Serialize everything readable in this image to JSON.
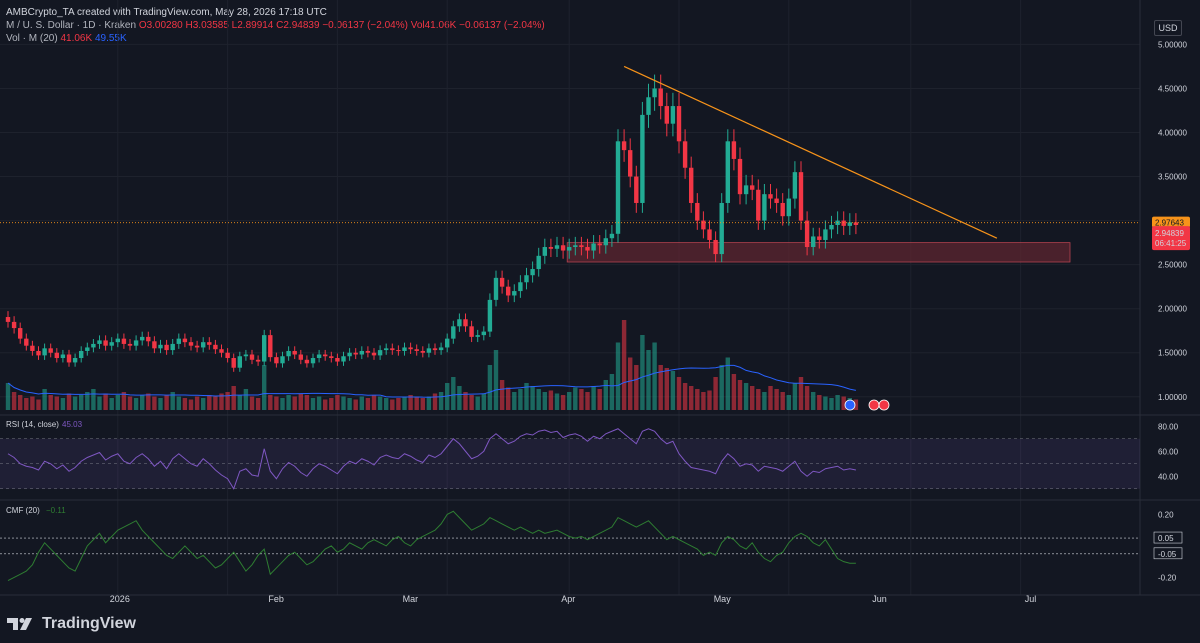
{
  "header": {
    "title": "AMBCrypto_TA created with TradingView.com, May 28, 2026 17:18 UTC",
    "symbol": "M / U. S. Dollar · 1D · Kraken",
    "ohlc": "O3.00280 H3.03585 L2.89914 C2.94839",
    "change": "−0.06137 (−2.04%)",
    "vol_inline": "Vol41.06K",
    "vol_change": "−0.06137 (−2.04%)",
    "vol_label": "Vol · M (20)",
    "vol_value": "41.06K",
    "vol_ma": "49.55K",
    "rsi_label": "RSI (14, close)",
    "rsi_value": "45.03",
    "cmf_label": "CMF (20)",
    "cmf_value": "−0.11"
  },
  "currency_label": "USD",
  "brand": "TradingView",
  "colors": {
    "bg": "#131722",
    "up": "#22ab94",
    "down": "#f23645",
    "trendline": "#f7931a",
    "zone": "#5d2530",
    "rsi": "#7e57c2",
    "cmf": "#2e7d32",
    "vol_ma": "#2962ff"
  },
  "chart_data": {
    "type": "candlestick",
    "price_axis": [
      "5.00000",
      "4.50000",
      "4.00000",
      "3.50000",
      "3.00000",
      "2.50000",
      "2.00000",
      "1.50000",
      "1.00000"
    ],
    "price_tags": {
      "high_line": "2.97643",
      "last": "2.94839",
      "countdown": "06:41:25"
    },
    "rsi_axis": [
      "80.00",
      "60.00",
      "40.00"
    ],
    "cmf_axis": [
      "0.20",
      "0.05",
      "-0.05",
      "-0.20"
    ],
    "date_labels": [
      "2026",
      "Feb",
      "Mar",
      "Apr",
      "May",
      "Jun",
      "Jul"
    ],
    "price": [
      1.85,
      1.78,
      1.66,
      1.58,
      1.52,
      1.47,
      1.55,
      1.5,
      1.44,
      1.48,
      1.39,
      1.44,
      1.52,
      1.56,
      1.6,
      1.64,
      1.58,
      1.62,
      1.66,
      1.6,
      1.58,
      1.64,
      1.68,
      1.63,
      1.55,
      1.59,
      1.53,
      1.6,
      1.66,
      1.62,
      1.58,
      1.56,
      1.62,
      1.59,
      1.54,
      1.5,
      1.44,
      1.33,
      1.46,
      1.48,
      1.42,
      1.4,
      1.7,
      1.45,
      1.38,
      1.46,
      1.52,
      1.48,
      1.42,
      1.38,
      1.44,
      1.48,
      1.46,
      1.44,
      1.4,
      1.46,
      1.5,
      1.48,
      1.52,
      1.5,
      1.47,
      1.53,
      1.55,
      1.53,
      1.52,
      1.56,
      1.54,
      1.52,
      1.5,
      1.55,
      1.53,
      1.56,
      1.66,
      1.8,
      1.88,
      1.8,
      1.68,
      1.7,
      1.74,
      2.1,
      2.35,
      2.25,
      2.15,
      2.2,
      2.3,
      2.38,
      2.45,
      2.6,
      2.7,
      2.68,
      2.72,
      2.66,
      2.7,
      2.72,
      2.7,
      2.66,
      2.74,
      2.72,
      2.8,
      2.85,
      3.9,
      3.8,
      3.5,
      3.2,
      4.2,
      4.4,
      4.5,
      4.3,
      4.1,
      4.3,
      3.9,
      3.6,
      3.2,
      3.0,
      2.9,
      2.78,
      2.62,
      3.2,
      3.9,
      3.7,
      3.3,
      3.4,
      3.35,
      3.0,
      3.3,
      3.25,
      3.2,
      3.05,
      3.25,
      3.55,
      3.0,
      2.7,
      2.82,
      2.78,
      2.9,
      2.95,
      3.0,
      2.94,
      2.98,
      2.95
    ],
    "rsi": [
      58,
      55,
      50,
      48,
      47,
      45,
      52,
      50,
      46,
      49,
      44,
      47,
      52,
      55,
      57,
      59,
      53,
      56,
      58,
      52,
      50,
      55,
      58,
      54,
      48,
      52,
      46,
      54,
      58,
      54,
      50,
      48,
      54,
      50,
      45,
      41,
      38,
      30,
      44,
      46,
      41,
      40,
      62,
      44,
      38,
      46,
      51,
      48,
      43,
      40,
      46,
      50,
      48,
      45,
      42,
      48,
      52,
      50,
      54,
      52,
      49,
      55,
      57,
      55,
      54,
      58,
      56,
      53,
      51,
      57,
      55,
      58,
      64,
      70,
      66,
      60,
      54,
      56,
      60,
      70,
      74,
      70,
      66,
      68,
      72,
      74,
      73,
      76,
      77,
      75,
      76,
      71,
      73,
      74,
      72,
      68,
      72,
      70,
      74,
      76,
      78,
      74,
      70,
      66,
      76,
      78,
      76,
      70,
      66,
      68,
      58,
      52,
      47,
      46,
      45,
      44,
      42,
      52,
      58,
      54,
      48,
      50,
      49,
      44,
      48,
      47,
      46,
      44,
      48,
      52,
      44,
      40,
      44,
      43,
      46,
      47,
      48,
      45,
      46,
      45
    ],
    "cmf": [
      -0.22,
      -0.2,
      -0.18,
      -0.16,
      -0.12,
      -0.04,
      0.02,
      -0.02,
      -0.06,
      -0.1,
      -0.14,
      -0.16,
      -0.08,
      0.0,
      0.04,
      0.08,
      0.02,
      0.06,
      0.1,
      0.12,
      0.14,
      0.16,
      0.1,
      0.06,
      0.02,
      -0.02,
      -0.06,
      -0.08,
      -0.04,
      0.0,
      -0.04,
      -0.08,
      -0.06,
      -0.1,
      -0.14,
      -0.12,
      -0.08,
      -0.04,
      -0.1,
      -0.16,
      -0.12,
      -0.06,
      -0.02,
      -0.18,
      -0.14,
      -0.1,
      -0.06,
      -0.04,
      -0.08,
      -0.12,
      -0.1,
      -0.06,
      -0.02,
      0.0,
      -0.04,
      -0.02,
      0.02,
      0.0,
      -0.02,
      0.02,
      0.04,
      0.02,
      0.0,
      0.04,
      0.06,
      0.02,
      0.0,
      0.04,
      0.06,
      0.08,
      0.1,
      0.14,
      0.2,
      0.22,
      0.18,
      0.14,
      0.1,
      0.12,
      0.14,
      0.18,
      0.16,
      0.14,
      0.12,
      0.1,
      0.12,
      0.1,
      0.08,
      0.1,
      0.08,
      0.09,
      0.1,
      0.08,
      0.06,
      0.05,
      0.06,
      0.04,
      0.06,
      0.08,
      0.1,
      0.12,
      0.18,
      0.16,
      0.14,
      0.12,
      0.14,
      0.16,
      0.12,
      0.08,
      0.04,
      0.06,
      0.04,
      0.02,
      0.0,
      -0.02,
      -0.06,
      -0.04,
      -0.06,
      0.02,
      0.06,
      0.04,
      0.0,
      -0.02,
      0.02,
      -0.04,
      -0.08,
      -0.1,
      -0.06,
      -0.04,
      0.02,
      0.06,
      0.08,
      0.06,
      0.02,
      0.0,
      0.04,
      -0.02,
      -0.08,
      -0.1,
      -0.11,
      -0.11
    ],
    "volume": [
      18,
      12,
      10,
      8,
      9,
      7,
      14,
      10,
      9,
      8,
      11,
      9,
      10,
      12,
      14,
      9,
      11,
      8,
      10,
      12,
      9,
      8,
      10,
      11,
      9,
      8,
      10,
      12,
      9,
      8,
      7,
      9,
      8,
      10,
      9,
      11,
      12,
      16,
      10,
      14,
      9,
      8,
      30,
      10,
      9,
      8,
      10,
      9,
      11,
      10,
      8,
      9,
      7,
      8,
      10,
      9,
      8,
      7,
      9,
      8,
      10,
      9,
      8,
      7,
      8,
      9,
      10,
      9,
      8,
      9,
      11,
      12,
      18,
      22,
      16,
      12,
      10,
      9,
      11,
      30,
      40,
      20,
      15,
      12,
      14,
      18,
      16,
      14,
      12,
      13,
      11,
      10,
      12,
      15,
      14,
      12,
      16,
      14,
      20,
      24,
      45,
      60,
      35,
      30,
      50,
      40,
      45,
      30,
      28,
      26,
      22,
      18,
      16,
      14,
      12,
      13,
      22,
      30,
      35,
      24,
      20,
      18,
      16,
      14,
      12,
      16,
      14,
      12,
      10,
      18,
      22,
      16,
      12,
      10,
      9,
      8,
      10,
      9,
      8,
      7
    ],
    "trendline": {
      "from": [
        101,
        4.75
      ],
      "to": [
        149,
        2.8
      ]
    },
    "support_zone": [
      2.53,
      2.75
    ],
    "start_index_date_labels": [
      18,
      36,
      54,
      72,
      92,
      110,
      128
    ]
  }
}
